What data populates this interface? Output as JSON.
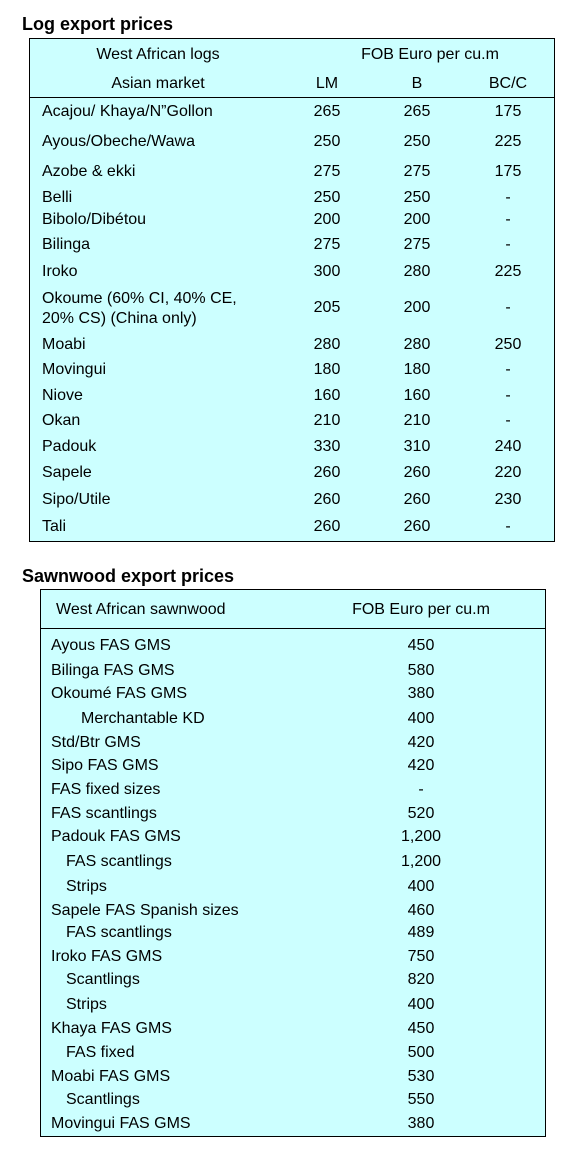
{
  "log_table": {
    "title": "Log export prices",
    "header": {
      "product": "West African logs",
      "market": "Asian market",
      "price_unit": "FOB Euro per cu.m",
      "grades": [
        "LM",
        "B",
        "BC/C"
      ]
    },
    "rows": [
      {
        "name": "Acajou/ Khaya/N”Gollon",
        "lm": "265",
        "b": "265",
        "bcc": "175"
      },
      {
        "name": "Ayous/Obeche/Wawa",
        "lm": "250",
        "b": "250",
        "bcc": "225"
      },
      {
        "name": "Azobe & ekki",
        "lm": "275",
        "b": "275",
        "bcc": "175"
      },
      {
        "name": "Belli",
        "lm": "250",
        "b": "250",
        "bcc": "-"
      },
      {
        "name": "Bibolo/Dibétou",
        "lm": "200",
        "b": "200",
        "bcc": "-"
      },
      {
        "name": "Bilinga",
        "lm": "275",
        "b": "275",
        "bcc": "-"
      },
      {
        "name": "Iroko",
        "lm": "300",
        "b": "280",
        "bcc": "225"
      },
      {
        "name": "Okoume (60% CI, 40% CE,",
        "name2": "20% CS) (China only)",
        "lm": "205",
        "b": "200",
        "bcc": "-"
      },
      {
        "name": "Moabi",
        "lm": "280",
        "b": "280",
        "bcc": "250"
      },
      {
        "name": "Movingui",
        "lm": "180",
        "b": "180",
        "bcc": "-"
      },
      {
        "name": "Niove",
        "lm": "160",
        "b": "160",
        "bcc": "-"
      },
      {
        "name": "Okan",
        "lm": "210",
        "b": "210",
        "bcc": "-"
      },
      {
        "name": "Padouk",
        "lm": "330",
        "b": "310",
        "bcc": "240"
      },
      {
        "name": "Sapele",
        "lm": "260",
        "b": "260",
        "bcc": "220"
      },
      {
        "name": "Sipo/Utile",
        "lm": "260",
        "b": "260",
        "bcc": "230"
      },
      {
        "name": "Tali",
        "lm": "260",
        "b": "260",
        "bcc": "-"
      }
    ]
  },
  "sawn_table": {
    "title": "Sawnwood export prices",
    "header": {
      "product": "West African sawnwood",
      "price_unit": "FOB Euro per cu.m"
    },
    "rows": [
      {
        "name": "Ayous FAS GMS",
        "indent": 0,
        "price": "450"
      },
      {
        "name": "Bilinga FAS GMS",
        "indent": 0,
        "price": "580"
      },
      {
        "name": "Okoumé FAS GMS",
        "indent": 0,
        "price": "380"
      },
      {
        "name": "Merchantable KD",
        "indent": 2,
        "price": "400"
      },
      {
        "name": "Std/Btr GMS",
        "indent": 0,
        "price": "420"
      },
      {
        "name": "Sipo FAS GMS",
        "indent": 0,
        "price": "420"
      },
      {
        "name": "FAS fixed sizes",
        "indent": 0,
        "price": "-"
      },
      {
        "name": "FAS scantlings",
        "indent": 0,
        "price": "520"
      },
      {
        "name": "Padouk FAS GMS",
        "indent": 0,
        "price": "1,200"
      },
      {
        "name": "FAS scantlings",
        "indent": 1,
        "price": "1,200"
      },
      {
        "name": "Strips",
        "indent": 1,
        "price": "400"
      },
      {
        "name": "Sapele FAS Spanish sizes",
        "indent": 0,
        "price": "460"
      },
      {
        "name": "FAS scantlings",
        "indent": 1,
        "price": "489"
      },
      {
        "name": "Iroko FAS GMS",
        "indent": 0,
        "price": "750"
      },
      {
        "name": "Scantlings",
        "indent": 1,
        "price": "820"
      },
      {
        "name": "Strips",
        "indent": 1,
        "price": "400"
      },
      {
        "name": "Khaya FAS GMS",
        "indent": 0,
        "price": "450"
      },
      {
        "name": "FAS fixed",
        "indent": 1,
        "price": "500"
      },
      {
        "name": "Moabi FAS GMS",
        "indent": 0,
        "price": "530"
      },
      {
        "name": "Scantlings",
        "indent": 1,
        "price": "550"
      },
      {
        "name": "Movingui FAS GMS",
        "indent": 0,
        "price": "380"
      }
    ]
  },
  "colors": {
    "table_background": "#ccffff",
    "border": "#000000"
  }
}
